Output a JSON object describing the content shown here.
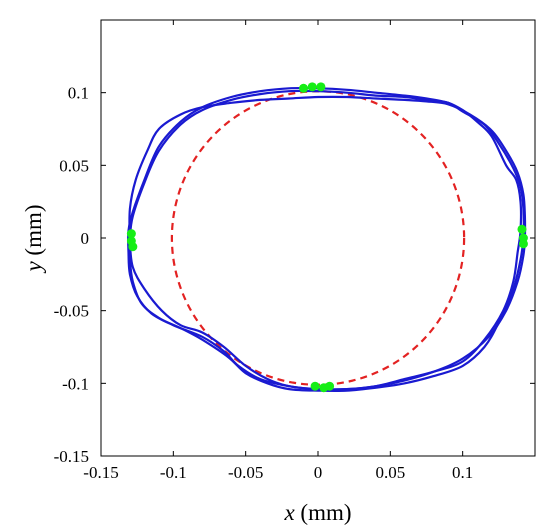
{
  "chart_data": {
    "type": "line",
    "title": "",
    "xlabel_var": "x",
    "xlabel_unit": " (mm)",
    "ylabel_var": "y",
    "ylabel_unit": " (mm)",
    "xlim": [
      -0.15,
      0.15
    ],
    "ylim": [
      -0.15,
      0.15
    ],
    "grid": false,
    "legend": "none",
    "x_ticks": [
      -0.15,
      -0.1,
      -0.05,
      0,
      0.05,
      0.1
    ],
    "x_tick_labels": [
      "-0.15",
      "-0.1",
      "-0.05",
      "0",
      "0.05",
      "0.1"
    ],
    "y_ticks": [
      -0.15,
      -0.1,
      -0.05,
      0,
      0.05,
      0.1
    ],
    "y_tick_labels": [
      "-0.15",
      "-0.1",
      "-0.05",
      "0",
      "0.05",
      "0.1"
    ],
    "reference_circle": {
      "cx": 0,
      "cy": 0,
      "r": 0.101,
      "color": "#e32222",
      "style": "dashed"
    },
    "trajectory_color": "#1a1ad1",
    "marker_color": "#16ee16",
    "series": [
      {
        "x": [
          0.14,
          0.137,
          0.13,
          0.12,
          0.11,
          0.1,
          0.09,
          0.075,
          0.06,
          0.04,
          0.02,
          0,
          -0.02,
          -0.04,
          -0.06,
          -0.08,
          -0.095,
          -0.11,
          -0.12,
          -0.128,
          -0.131,
          -0.131,
          -0.13,
          -0.125,
          -0.115,
          -0.1,
          -0.08,
          -0.065,
          -0.055,
          -0.04,
          -0.02,
          0,
          0.02,
          0.04,
          0.06,
          0.08,
          0.1,
          0.115,
          0.128,
          0.135,
          0.138,
          0.14
        ],
        "y": [
          0.025,
          0.04,
          0.05,
          0.07,
          0.08,
          0.088,
          0.093,
          0.096,
          0.098,
          0.1,
          0.102,
          0.103,
          0.103,
          0.101,
          0.097,
          0.09,
          0.08,
          0.063,
          0.04,
          0.018,
          0.005,
          -0.01,
          -0.025,
          -0.04,
          -0.052,
          -0.06,
          -0.068,
          -0.078,
          -0.088,
          -0.097,
          -0.102,
          -0.104,
          -0.104,
          -0.102,
          -0.097,
          -0.092,
          -0.085,
          -0.07,
          -0.05,
          -0.03,
          -0.01,
          0.005
        ]
      },
      {
        "x": [
          0.142,
          0.14,
          0.135,
          0.125,
          0.115,
          0.1,
          0.09,
          0.075,
          0.06,
          0.04,
          0.02,
          0,
          -0.02,
          -0.04,
          -0.06,
          -0.08,
          -0.095,
          -0.11,
          -0.12,
          -0.128,
          -0.13,
          -0.13,
          -0.128,
          -0.122,
          -0.11,
          -0.095,
          -0.08,
          -0.062,
          -0.05,
          -0.035,
          -0.02,
          0,
          0.02,
          0.04,
          0.06,
          0.08,
          0.1,
          0.115,
          0.125,
          0.135,
          0.14,
          0.142
        ],
        "y": [
          0.02,
          0.035,
          0.048,
          0.065,
          0.078,
          0.087,
          0.093,
          0.095,
          0.097,
          0.098,
          0.1,
          0.101,
          0.101,
          0.099,
          0.095,
          0.088,
          0.078,
          0.06,
          0.038,
          0.015,
          0,
          -0.015,
          -0.03,
          -0.045,
          -0.055,
          -0.062,
          -0.07,
          -0.082,
          -0.093,
          -0.1,
          -0.104,
          -0.105,
          -0.105,
          -0.103,
          -0.1,
          -0.095,
          -0.088,
          -0.075,
          -0.058,
          -0.035,
          -0.015,
          0
        ]
      },
      {
        "x": [
          0.143,
          0.142,
          0.138,
          0.13,
          0.12,
          0.105,
          0.09,
          0.075,
          0.06,
          0.04,
          0.02,
          0,
          -0.02,
          -0.04,
          -0.06,
          -0.08,
          -0.095,
          -0.11,
          -0.118,
          -0.126,
          -0.13,
          -0.13,
          -0.128,
          -0.12,
          -0.108,
          -0.095,
          -0.08,
          -0.065,
          -0.05,
          -0.035,
          -0.02,
          0,
          0.02,
          0.04,
          0.06,
          0.08,
          0.1,
          0.118,
          0.13,
          0.138,
          0.142,
          0.143
        ],
        "y": [
          0.015,
          0.03,
          0.045,
          0.06,
          0.074,
          0.085,
          0.092,
          0.094,
          0.095,
          0.096,
          0.097,
          0.097,
          0.096,
          0.095,
          0.093,
          0.09,
          0.085,
          0.075,
          0.06,
          0.04,
          0.02,
          -0.002,
          -0.02,
          -0.035,
          -0.05,
          -0.06,
          -0.065,
          -0.075,
          -0.088,
          -0.097,
          -0.102,
          -0.104,
          -0.104,
          -0.102,
          -0.098,
          -0.092,
          -0.083,
          -0.068,
          -0.05,
          -0.03,
          -0.012,
          0
        ]
      }
    ],
    "markers": [
      {
        "x": -0.01,
        "y": 0.103
      },
      {
        "x": -0.004,
        "y": 0.104
      },
      {
        "x": 0.002,
        "y": 0.104
      },
      {
        "x": 0.141,
        "y": 0.006
      },
      {
        "x": 0.142,
        "y": 0.0
      },
      {
        "x": 0.142,
        "y": -0.004
      },
      {
        "x": -0.002,
        "y": -0.102
      },
      {
        "x": 0.004,
        "y": -0.103
      },
      {
        "x": 0.008,
        "y": -0.102
      },
      {
        "x": -0.129,
        "y": 0.003
      },
      {
        "x": -0.129,
        "y": -0.002
      },
      {
        "x": -0.128,
        "y": -0.006
      }
    ]
  }
}
